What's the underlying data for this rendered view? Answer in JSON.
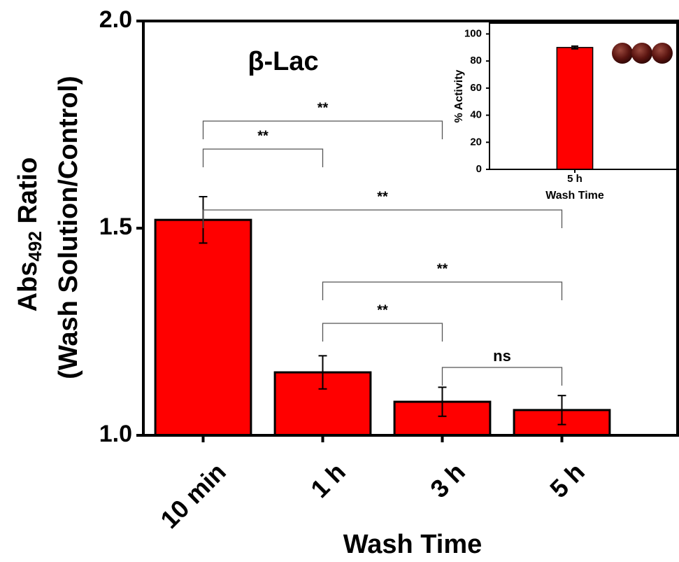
{
  "chart_data": [
    {
      "type": "bar",
      "title": "β-Lac",
      "categories": [
        "10 min",
        "1 h",
        "3 h",
        "5 h"
      ],
      "values": [
        1.52,
        1.152,
        1.081,
        1.061
      ],
      "errors": [
        0.056,
        0.04,
        0.035,
        0.035
      ],
      "color": "#ff0000",
      "ylim": [
        1,
        2
      ],
      "yticks": [
        {
          "value": 1,
          "label": "1.0"
        },
        {
          "value": 1.5,
          "label": "1.5"
        },
        {
          "value": 2,
          "label": "2.0"
        }
      ],
      "ylabel": [
        "Abs",
        "492",
        " Ratio"
      ],
      "ylabel2": "(Wash Solution/Control)",
      "xlabel": "Wash Time",
      "comparisons": [
        {
          "between": [
            "10 min",
            "3 h"
          ],
          "label": "**"
        },
        {
          "between": [
            "10 min",
            "1 h"
          ],
          "label": "**"
        },
        {
          "between": [
            "10 min",
            "5 h"
          ],
          "label": "**"
        },
        {
          "between": [
            "1 h",
            "5 h"
          ],
          "label": "**"
        },
        {
          "between": [
            "1 h",
            "3 h"
          ],
          "label": "**"
        },
        {
          "between": [
            "3 h",
            "5 h"
          ],
          "label": "ns"
        }
      ]
    },
    {
      "type": "bar",
      "categories": [
        "5 h"
      ],
      "values": [
        90
      ],
      "errors": [
        1
      ],
      "color": "#ff0000",
      "ylim": [
        0,
        108
      ],
      "yticks": [
        0,
        20,
        40,
        60,
        80,
        100
      ],
      "ylabel": "% Activity",
      "xlabel": "Wash Time"
    }
  ]
}
